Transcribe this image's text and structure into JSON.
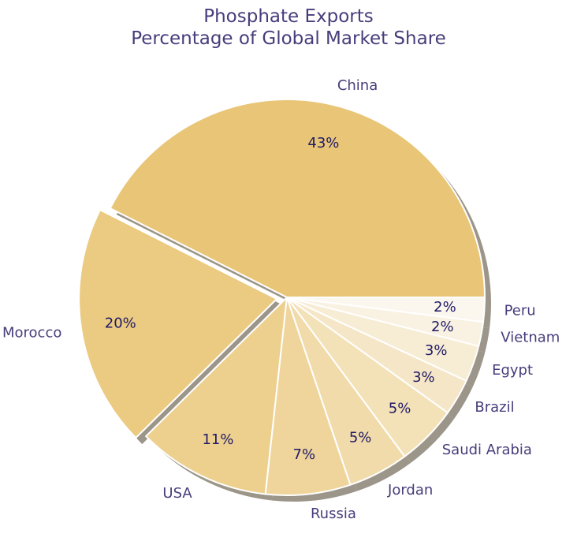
{
  "chart_data": {
    "type": "pie",
    "title": [
      "Phosphate Exports",
      "Percentage of Global Market Share"
    ],
    "categories": [
      "China",
      "Morocco",
      "USA",
      "Russia",
      "Jordan",
      "Saudi Arabia",
      "Brazil",
      "Egypt",
      "Vietnam",
      "Peru"
    ],
    "values": [
      43,
      20,
      11,
      7,
      5,
      5,
      3,
      3,
      2,
      2
    ],
    "value_labels": [
      "43%",
      "20%",
      "11%",
      "7%",
      "5%",
      "5%",
      "3%",
      "3%",
      "2%",
      "2%"
    ],
    "colors": [
      "#e9c577",
      "#ebca81",
      "#edd08e",
      "#efd59b",
      "#f1dbaa",
      "#f3e1b8",
      "#f5e6c7",
      "#f7ecd4",
      "#f9f2e2",
      "#fcf7ee"
    ],
    "exploded": [
      "Morocco"
    ],
    "shadow": true,
    "start_angle_deg": 0,
    "direction": "counterclockwise"
  }
}
